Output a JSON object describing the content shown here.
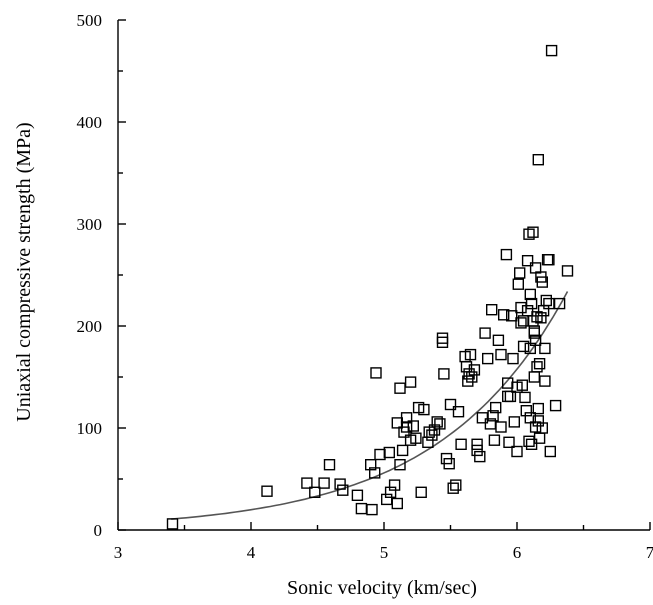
{
  "chart_data": {
    "type": "scatter",
    "xlabel": "Sonic velocity  (km/sec)",
    "ylabel": "Uniaxial compressive strength (MPa)",
    "xlim": [
      3,
      7
    ],
    "ylim": [
      0,
      500
    ],
    "xticks": [
      "3",
      "4",
      "5",
      "6",
      "7"
    ],
    "yticks": [
      "0",
      "100",
      "200",
      "300",
      "400",
      "500"
    ],
    "grid": false,
    "marker": "open-square",
    "points": [
      [
        3.41,
        6
      ],
      [
        4.12,
        38
      ],
      [
        4.42,
        46
      ],
      [
        4.48,
        37
      ],
      [
        4.55,
        46
      ],
      [
        4.59,
        64
      ],
      [
        4.67,
        45
      ],
      [
        4.69,
        39
      ],
      [
        4.8,
        34
      ],
      [
        4.83,
        21
      ],
      [
        4.9,
        64
      ],
      [
        4.91,
        20
      ],
      [
        4.93,
        56
      ],
      [
        4.94,
        154
      ],
      [
        4.97,
        74
      ],
      [
        5.02,
        30
      ],
      [
        5.04,
        76
      ],
      [
        5.05,
        37
      ],
      [
        5.08,
        44
      ],
      [
        5.1,
        105
      ],
      [
        5.1,
        26
      ],
      [
        5.12,
        64
      ],
      [
        5.12,
        139
      ],
      [
        5.14,
        78
      ],
      [
        5.15,
        96
      ],
      [
        5.17,
        110
      ],
      [
        5.17,
        101
      ],
      [
        5.2,
        88
      ],
      [
        5.2,
        145
      ],
      [
        5.22,
        102
      ],
      [
        5.24,
        90
      ],
      [
        5.26,
        120
      ],
      [
        5.28,
        37
      ],
      [
        5.3,
        118
      ],
      [
        5.33,
        86
      ],
      [
        5.34,
        96
      ],
      [
        5.36,
        93
      ],
      [
        5.38,
        98
      ],
      [
        5.4,
        106
      ],
      [
        5.42,
        104
      ],
      [
        5.44,
        188
      ],
      [
        5.44,
        184
      ],
      [
        5.45,
        153
      ],
      [
        5.47,
        70
      ],
      [
        5.49,
        65
      ],
      [
        5.5,
        123
      ],
      [
        5.52,
        41
      ],
      [
        5.54,
        44
      ],
      [
        5.56,
        116
      ],
      [
        5.58,
        84
      ],
      [
        5.61,
        170
      ],
      [
        5.62,
        160
      ],
      [
        5.63,
        146
      ],
      [
        5.64,
        153
      ],
      [
        5.65,
        172
      ],
      [
        5.66,
        150
      ],
      [
        5.68,
        157
      ],
      [
        5.7,
        84
      ],
      [
        5.7,
        78
      ],
      [
        5.72,
        72
      ],
      [
        5.74,
        110
      ],
      [
        5.76,
        193
      ],
      [
        5.78,
        168
      ],
      [
        5.8,
        104
      ],
      [
        5.81,
        216
      ],
      [
        5.82,
        112
      ],
      [
        5.83,
        88
      ],
      [
        5.84,
        120
      ],
      [
        5.86,
        186
      ],
      [
        5.88,
        172
      ],
      [
        5.88,
        101
      ],
      [
        5.9,
        211
      ],
      [
        5.92,
        270
      ],
      [
        5.93,
        144
      ],
      [
        5.94,
        86
      ],
      [
        5.95,
        131
      ],
      [
        5.96,
        210
      ],
      [
        5.97,
        168
      ],
      [
        5.98,
        106
      ],
      [
        6.0,
        77
      ],
      [
        6.01,
        241
      ],
      [
        6.02,
        252
      ],
      [
        6.03,
        218
      ],
      [
        6.03,
        203
      ],
      [
        6.04,
        142
      ],
      [
        6.05,
        180
      ],
      [
        6.06,
        130
      ],
      [
        6.07,
        117
      ],
      [
        6.08,
        264
      ],
      [
        6.08,
        215
      ],
      [
        6.09,
        290
      ],
      [
        6.09,
        87
      ],
      [
        6.1,
        231
      ],
      [
        6.1,
        178
      ],
      [
        6.1,
        110
      ],
      [
        6.11,
        222
      ],
      [
        6.11,
        84
      ],
      [
        6.12,
        292
      ],
      [
        6.12,
        205
      ],
      [
        6.13,
        195
      ],
      [
        6.13,
        150
      ],
      [
        6.14,
        257
      ],
      [
        6.14,
        186
      ],
      [
        6.14,
        101
      ],
      [
        6.15,
        209
      ],
      [
        6.15,
        160
      ],
      [
        6.16,
        363
      ],
      [
        6.16,
        119
      ],
      [
        6.17,
        163
      ],
      [
        6.17,
        90
      ],
      [
        6.18,
        248
      ],
      [
        6.18,
        208
      ],
      [
        6.19,
        243
      ],
      [
        6.2,
        215
      ],
      [
        6.21,
        178
      ],
      [
        6.21,
        146
      ],
      [
        6.22,
        225
      ],
      [
        6.23,
        265
      ],
      [
        6.24,
        265
      ],
      [
        6.24,
        222
      ],
      [
        6.25,
        77
      ],
      [
        6.26,
        470
      ],
      [
        6.29,
        122
      ],
      [
        6.32,
        222
      ],
      [
        6.38,
        254
      ],
      [
        5.93,
        131
      ],
      [
        6.0,
        140
      ],
      [
        6.05,
        205
      ],
      [
        6.13,
        193
      ],
      [
        6.16,
        107
      ],
      [
        6.19,
        100
      ]
    ],
    "fit_curve": {
      "type": "exponential",
      "a": 0.315,
      "b": 1.036,
      "x_range": [
        3.4,
        6.38
      ]
    }
  }
}
